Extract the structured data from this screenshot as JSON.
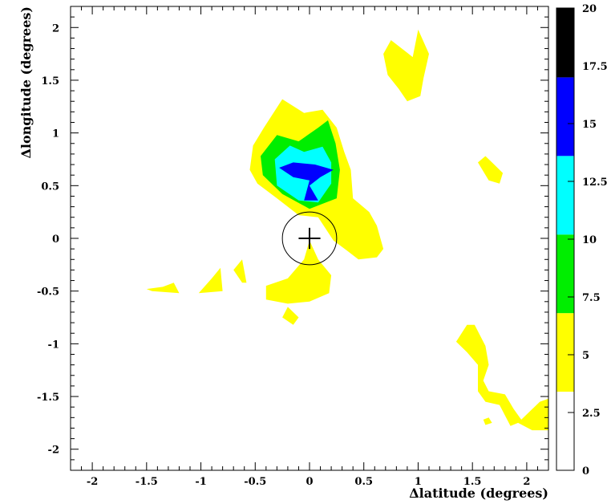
{
  "chart_data": {
    "type": "heatmap",
    "title": "",
    "xlabel": "Δlatitude (degrees)",
    "ylabel": "Δlongitude (degrees)",
    "xlim": [
      -2.2,
      2.2
    ],
    "ylim": [
      -2.2,
      2.2
    ],
    "x_ticks": [
      -2,
      -1.5,
      -1,
      -0.5,
      0,
      0.5,
      1,
      1.5,
      2
    ],
    "x_tick_labels": [
      "-2",
      "-1.5",
      "-1",
      "-0.5",
      "0",
      "0.5",
      "1",
      "1.5",
      "2"
    ],
    "y_ticks": [
      -2,
      -1.5,
      -1,
      -0.5,
      0,
      0.5,
      1,
      1.5,
      2
    ],
    "y_tick_labels": [
      "-2",
      "-1.5",
      "-1",
      "-0.5",
      "0",
      "0.5",
      "1",
      "1.5",
      "2"
    ],
    "colorbar": {
      "range": [
        0,
        20
      ],
      "ticks": [
        0,
        2.5,
        5,
        7.5,
        10,
        12.5,
        15,
        17.5,
        20
      ],
      "tick_labels": [
        "0",
        "2.5",
        "5",
        "7.5",
        "10",
        "12.5",
        "15",
        "17.5",
        "20"
      ],
      "levels": [
        {
          "from": 0,
          "to": 3.4,
          "color": "#ffffff"
        },
        {
          "from": 3.4,
          "to": 6.8,
          "color": "#ffff00"
        },
        {
          "from": 6.8,
          "to": 10.2,
          "color": "#00ee00"
        },
        {
          "from": 10.2,
          "to": 13.6,
          "color": "#00ffff"
        },
        {
          "from": 13.6,
          "to": 17.0,
          "color": "#0000ff"
        },
        {
          "from": 17.0,
          "to": 20,
          "color": "#000000"
        }
      ]
    },
    "regions": [
      {
        "level": "yellow",
        "points": [
          [
            -0.52,
            0.88
          ],
          [
            -0.42,
            1.05
          ],
          [
            -0.25,
            1.32
          ],
          [
            -0.05,
            1.19
          ],
          [
            0.12,
            1.22
          ],
          [
            0.25,
            1.05
          ],
          [
            0.32,
            0.82
          ],
          [
            0.38,
            0.65
          ],
          [
            0.4,
            0.38
          ],
          [
            0.55,
            0.25
          ],
          [
            0.62,
            0.12
          ],
          [
            0.68,
            -0.1
          ],
          [
            0.62,
            -0.18
          ],
          [
            0.45,
            -0.2
          ],
          [
            0.35,
            -0.12
          ],
          [
            0.22,
            -0.02
          ],
          [
            0.08,
            0.2
          ],
          [
            -0.1,
            0.22
          ],
          [
            -0.3,
            0.38
          ],
          [
            -0.48,
            0.52
          ],
          [
            -0.55,
            0.65
          ]
        ]
      },
      {
        "level": "green",
        "points": [
          [
            -0.45,
            0.78
          ],
          [
            -0.3,
            0.98
          ],
          [
            -0.1,
            0.92
          ],
          [
            0.08,
            1.05
          ],
          [
            0.17,
            1.12
          ],
          [
            0.24,
            0.9
          ],
          [
            0.28,
            0.65
          ],
          [
            0.25,
            0.38
          ],
          [
            0.0,
            0.28
          ],
          [
            -0.25,
            0.42
          ],
          [
            -0.43,
            0.6
          ]
        ]
      },
      {
        "level": "cyan",
        "points": [
          [
            -0.32,
            0.75
          ],
          [
            -0.18,
            0.88
          ],
          [
            -0.05,
            0.82
          ],
          [
            0.12,
            0.87
          ],
          [
            0.2,
            0.72
          ],
          [
            0.2,
            0.52
          ],
          [
            0.08,
            0.34
          ],
          [
            -0.1,
            0.36
          ],
          [
            -0.3,
            0.5
          ]
        ]
      },
      {
        "level": "blue",
        "points": [
          [
            -0.28,
            0.67
          ],
          [
            -0.15,
            0.72
          ],
          [
            0.05,
            0.7
          ],
          [
            0.22,
            0.65
          ],
          [
            0.1,
            0.58
          ],
          [
            0.0,
            0.5
          ],
          [
            0.08,
            0.36
          ],
          [
            -0.05,
            0.36
          ],
          [
            0.0,
            0.55
          ],
          [
            -0.15,
            0.58
          ]
        ]
      },
      {
        "level": "yellow",
        "points": [
          [
            0.68,
            1.75
          ],
          [
            0.75,
            1.88
          ],
          [
            0.95,
            1.72
          ],
          [
            1.0,
            1.98
          ],
          [
            1.1,
            1.75
          ],
          [
            1.05,
            1.52
          ],
          [
            1.02,
            1.35
          ],
          [
            0.9,
            1.3
          ],
          [
            0.82,
            1.42
          ],
          [
            0.72,
            1.55
          ]
        ]
      },
      {
        "level": "yellow",
        "points": [
          [
            -0.4,
            -0.45
          ],
          [
            -0.2,
            -0.38
          ],
          [
            -0.05,
            -0.2
          ],
          [
            0.0,
            -0.02
          ],
          [
            0.08,
            -0.2
          ],
          [
            0.2,
            -0.35
          ],
          [
            0.18,
            -0.52
          ],
          [
            0.0,
            -0.6
          ],
          [
            -0.2,
            -0.62
          ],
          [
            -0.4,
            -0.58
          ]
        ]
      },
      {
        "level": "yellow",
        "points": [
          [
            -0.2,
            -0.65
          ],
          [
            -0.1,
            -0.75
          ],
          [
            -0.15,
            -0.82
          ],
          [
            -0.25,
            -0.75
          ]
        ]
      },
      {
        "level": "yellow",
        "points": [
          [
            -0.7,
            -0.3
          ],
          [
            -0.62,
            -0.2
          ],
          [
            -0.58,
            -0.42
          ],
          [
            -0.62,
            -0.42
          ]
        ]
      },
      {
        "level": "yellow",
        "points": [
          [
            -1.02,
            -0.52
          ],
          [
            -0.9,
            -0.38
          ],
          [
            -0.82,
            -0.28
          ],
          [
            -0.8,
            -0.5
          ]
        ]
      },
      {
        "level": "yellow",
        "points": [
          [
            -1.5,
            -0.48
          ],
          [
            -1.35,
            -0.46
          ],
          [
            -1.25,
            -0.42
          ],
          [
            -1.2,
            -0.52
          ],
          [
            -1.45,
            -0.5
          ]
        ]
      },
      {
        "level": "yellow",
        "points": [
          [
            1.55,
            0.72
          ],
          [
            1.65,
            0.55
          ],
          [
            1.75,
            0.52
          ],
          [
            1.78,
            0.62
          ],
          [
            1.68,
            0.72
          ],
          [
            1.62,
            0.78
          ]
        ]
      },
      {
        "level": "yellow",
        "points": [
          [
            1.35,
            -0.98
          ],
          [
            1.45,
            -0.82
          ],
          [
            1.52,
            -0.82
          ],
          [
            1.62,
            -1.02
          ],
          [
            1.65,
            -1.2
          ],
          [
            1.6,
            -1.35
          ],
          [
            1.65,
            -1.45
          ],
          [
            1.8,
            -1.48
          ],
          [
            1.88,
            -1.62
          ],
          [
            1.95,
            -1.72
          ],
          [
            2.05,
            -1.62
          ],
          [
            2.12,
            -1.55
          ],
          [
            2.2,
            -1.52
          ],
          [
            2.2,
            -1.82
          ],
          [
            2.05,
            -1.82
          ],
          [
            1.92,
            -1.75
          ],
          [
            1.85,
            -1.78
          ],
          [
            1.75,
            -1.58
          ],
          [
            1.62,
            -1.55
          ],
          [
            1.55,
            -1.45
          ],
          [
            1.55,
            -1.2
          ],
          [
            1.45,
            -1.08
          ]
        ]
      },
      {
        "level": "yellow",
        "points": [
          [
            1.6,
            -1.72
          ],
          [
            1.65,
            -1.7
          ],
          [
            1.68,
            -1.75
          ],
          [
            1.62,
            -1.77
          ]
        ]
      }
    ],
    "markers": [
      {
        "type": "cross",
        "x": 0.0,
        "y": 0.0,
        "size": 0.1
      },
      {
        "type": "circle",
        "x": 0.0,
        "y": 0.0,
        "radius": 0.25
      }
    ]
  }
}
